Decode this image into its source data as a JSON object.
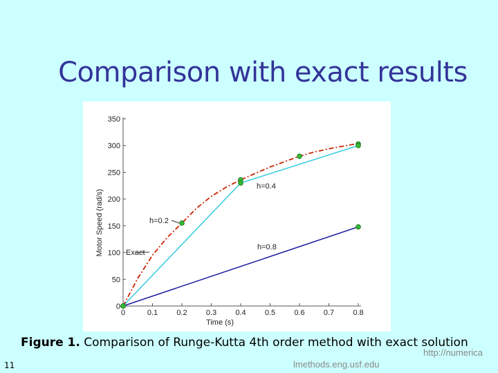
{
  "slide": {
    "title": "Comparison with exact results",
    "caption_label": "Figure 1.",
    "caption_text": "Comparison of Runge-Kutta 4th order method with exact solution",
    "slide_number": "11",
    "url_part1": "http://numerica",
    "url_part2": "lmethods.eng.usf.edu"
  },
  "chart_data": {
    "type": "line",
    "xlabel": "Time (s)",
    "ylabel": "Motor Speed (rad/s)",
    "xlim": [
      0,
      0.8
    ],
    "ylim": [
      0,
      350
    ],
    "xticks": [
      0,
      0.1,
      0.2,
      0.3,
      0.4,
      0.5,
      0.6,
      0.7,
      0.8
    ],
    "yticks": [
      0,
      50,
      100,
      150,
      200,
      250,
      300,
      350
    ],
    "series": [
      {
        "name": "Exact",
        "color": "#cc2200",
        "style": "dashdot",
        "x": [
          0,
          0.05,
          0.1,
          0.15,
          0.2,
          0.25,
          0.3,
          0.35,
          0.4,
          0.45,
          0.5,
          0.55,
          0.6,
          0.65,
          0.7,
          0.75,
          0.8
        ],
        "y": [
          0,
          52,
          95,
          128,
          155,
          183,
          205,
          222,
          236,
          248,
          260,
          270,
          280,
          288,
          294,
          299,
          304
        ]
      },
      {
        "name": "h=0.2",
        "color": "#22aa22",
        "style": "markers",
        "x": [
          0,
          0.2,
          0.4,
          0.6,
          0.8
        ],
        "y": [
          0,
          155,
          236,
          280,
          303
        ]
      },
      {
        "name": "h=0.4",
        "color": "#33ccdd",
        "style": "solid",
        "x": [
          0,
          0.4,
          0.8
        ],
        "y": [
          0,
          230,
          300
        ]
      },
      {
        "name": "h=0.8",
        "color": "#1a1aa0",
        "style": "solid",
        "x": [
          0,
          0.8
        ],
        "y": [
          0,
          148
        ]
      }
    ],
    "annotations": [
      {
        "text": "h=0.2",
        "x": 0.2,
        "y": 155
      },
      {
        "text": "Exact",
        "x": 0.05,
        "y": 100
      },
      {
        "text": "h=0.4",
        "x": 0.4,
        "y": 230
      },
      {
        "text": "h=0.8",
        "x": 0.45,
        "y": 110
      }
    ]
  }
}
